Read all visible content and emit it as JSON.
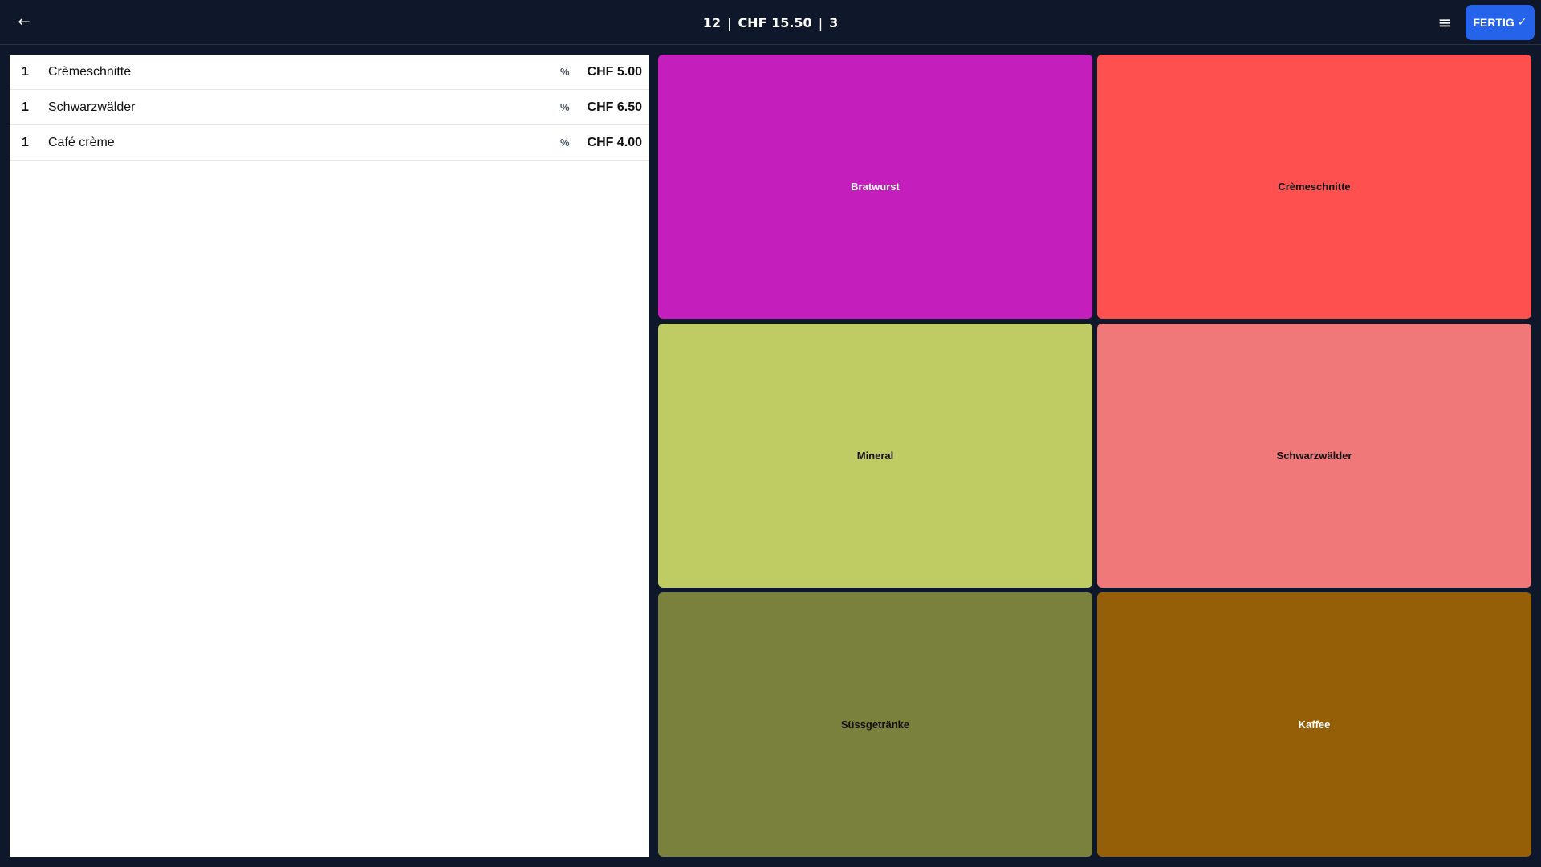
{
  "header": {
    "back_icon": "←",
    "table_number": "12",
    "separator": "|",
    "total": "CHF 15.50",
    "item_count": "3",
    "menu_icon": "≡",
    "done_label": "FERTIG",
    "done_icon": "✓",
    "done_color": "#2563eb"
  },
  "order": {
    "items": [
      {
        "qty": "1",
        "name": "Crèmeschnitte",
        "discount_symbol": "%",
        "price": "CHF 5.00"
      },
      {
        "qty": "1",
        "name": "Schwarzwälder",
        "discount_symbol": "%",
        "price": "CHF 6.50"
      },
      {
        "qty": "1",
        "name": "Café crème",
        "discount_symbol": "%",
        "price": "CHF 4.00"
      }
    ]
  },
  "products": {
    "tiles": [
      {
        "label": "Bratwurst",
        "color": "#c41fbd",
        "text_color": "#ffffff"
      },
      {
        "label": "Crèmeschnitte",
        "color": "#ff5050",
        "text_color": "#111111"
      },
      {
        "label": "Mineral",
        "color": "#bfcc63",
        "text_color": "#111111"
      },
      {
        "label": "Schwarzwälder",
        "color": "#f17878",
        "text_color": "#111111"
      },
      {
        "label": "Süssgetränke",
        "color": "#7a813c",
        "text_color": "#111111"
      },
      {
        "label": "Kaffee",
        "color": "#955f07",
        "text_color": "#ffffff"
      }
    ]
  }
}
